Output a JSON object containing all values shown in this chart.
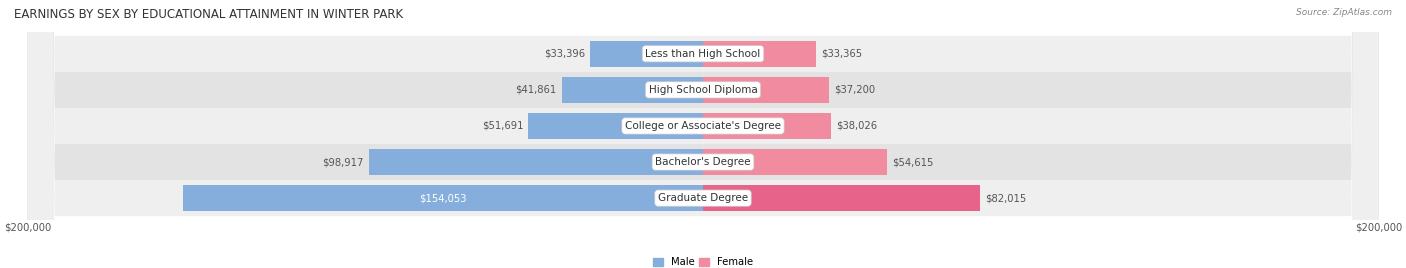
{
  "title": "EARNINGS BY SEX BY EDUCATIONAL ATTAINMENT IN WINTER PARK",
  "source": "Source: ZipAtlas.com",
  "categories": [
    "Less than High School",
    "High School Diploma",
    "College or Associate's Degree",
    "Bachelor's Degree",
    "Graduate Degree"
  ],
  "male_values": [
    33396,
    41861,
    51691,
    98917,
    154053
  ],
  "female_values": [
    33365,
    37200,
    38026,
    54615,
    82015
  ],
  "male_color": "#85AEDD",
  "female_color": "#F08BA0",
  "female_last_color": "#E8638A",
  "bar_bg_odd": "#efefef",
  "bar_bg_even": "#e3e3e3",
  "xlim": 200000,
  "legend_male": "Male",
  "legend_female": "Female",
  "title_fontsize": 8.5,
  "label_fontsize": 7.2,
  "category_fontsize": 7.5,
  "source_fontsize": 6.5
}
